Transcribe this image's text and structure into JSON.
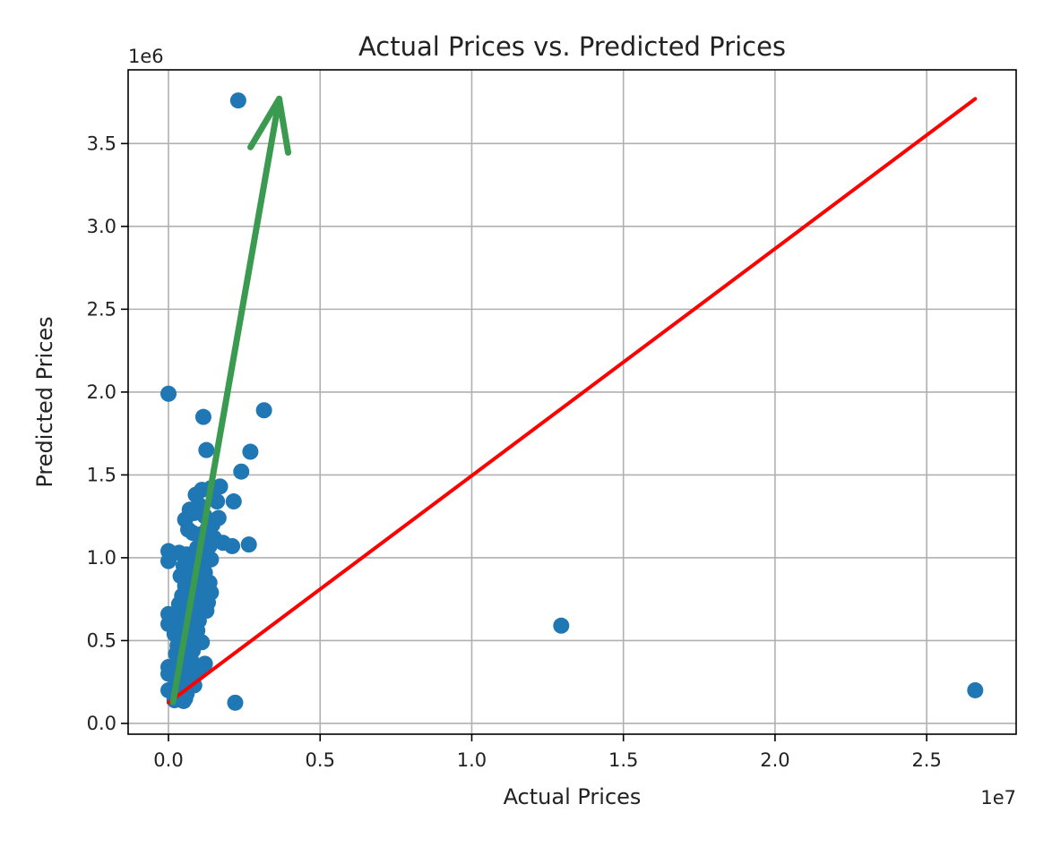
{
  "chart_data": {
    "type": "scatter",
    "title": "Actual Prices vs. Predicted Prices",
    "xlabel": "Actual Prices",
    "ylabel": "Predicted Prices",
    "x_offset_text": "1e7",
    "y_offset_text": "1e6",
    "xlim": [
      -1330000,
      27950000
    ],
    "ylim": [
      -65000,
      3945000
    ],
    "x_ticks": [
      {
        "value": 0,
        "label": "0.0"
      },
      {
        "value": 5000000,
        "label": "0.5"
      },
      {
        "value": 10000000,
        "label": "1.0"
      },
      {
        "value": 15000000,
        "label": "1.5"
      },
      {
        "value": 20000000,
        "label": "2.0"
      },
      {
        "value": 25000000,
        "label": "2.5"
      }
    ],
    "y_ticks": [
      {
        "value": 0,
        "label": "0.0"
      },
      {
        "value": 500000,
        "label": "0.5"
      },
      {
        "value": 1000000,
        "label": "1.0"
      },
      {
        "value": 1500000,
        "label": "1.5"
      },
      {
        "value": 2000000,
        "label": "2.0"
      },
      {
        "value": 2500000,
        "label": "2.5"
      },
      {
        "value": 3000000,
        "label": "3.0"
      },
      {
        "value": 3500000,
        "label": "3.5"
      }
    ],
    "grid": true,
    "colors": {
      "points": "#1f77b4",
      "line": "#ff0000",
      "annotation": "#3a9a50"
    },
    "points": [
      [
        2300000,
        3760000
      ],
      [
        0,
        1990000
      ],
      [
        1150000,
        1850000
      ],
      [
        3150000,
        1890000
      ],
      [
        1250000,
        1650000
      ],
      [
        2700000,
        1640000
      ],
      [
        2400000,
        1520000
      ],
      [
        1700000,
        1430000
      ],
      [
        1400000,
        1420000
      ],
      [
        1100000,
        1410000
      ],
      [
        900000,
        1380000
      ],
      [
        2150000,
        1340000
      ],
      [
        1600000,
        1340000
      ],
      [
        1000000,
        1320000
      ],
      [
        700000,
        1290000
      ],
      [
        850000,
        1270000
      ],
      [
        1200000,
        1250000
      ],
      [
        550000,
        1230000
      ],
      [
        1650000,
        1240000
      ],
      [
        1450000,
        1200000
      ],
      [
        1300000,
        1180000
      ],
      [
        650000,
        1170000
      ],
      [
        800000,
        1150000
      ],
      [
        1050000,
        1140000
      ],
      [
        1500000,
        1120000
      ],
      [
        1150000,
        1100000
      ],
      [
        1800000,
        1090000
      ],
      [
        2100000,
        1070000
      ],
      [
        2650000,
        1080000
      ],
      [
        1350000,
        1070000
      ],
      [
        950000,
        1060000
      ],
      [
        0,
        1040000
      ],
      [
        350000,
        1030000
      ],
      [
        600000,
        1020000
      ],
      [
        750000,
        1010000
      ],
      [
        900000,
        1000000
      ],
      [
        1100000,
        990000
      ],
      [
        1250000,
        980000
      ],
      [
        1400000,
        990000
      ],
      [
        0,
        980000
      ],
      [
        500000,
        950000
      ],
      [
        650000,
        940000
      ],
      [
        850000,
        930000
      ],
      [
        1050000,
        920000
      ],
      [
        1200000,
        910000
      ],
      [
        400000,
        890000
      ],
      [
        700000,
        880000
      ],
      [
        950000,
        870000
      ],
      [
        1150000,
        860000
      ],
      [
        1350000,
        850000
      ],
      [
        550000,
        830000
      ],
      [
        800000,
        820000
      ],
      [
        1000000,
        810000
      ],
      [
        1250000,
        800000
      ],
      [
        1400000,
        790000
      ],
      [
        450000,
        770000
      ],
      [
        700000,
        760000
      ],
      [
        900000,
        750000
      ],
      [
        1100000,
        740000
      ],
      [
        1300000,
        730000
      ],
      [
        350000,
        720000
      ],
      [
        600000,
        710000
      ],
      [
        850000,
        700000
      ],
      [
        1050000,
        690000
      ],
      [
        1250000,
        680000
      ],
      [
        0,
        660000
      ],
      [
        300000,
        650000
      ],
      [
        550000,
        640000
      ],
      [
        800000,
        630000
      ],
      [
        1000000,
        620000
      ],
      [
        0,
        600000
      ],
      [
        250000,
        590000
      ],
      [
        450000,
        580000
      ],
      [
        700000,
        570000
      ],
      [
        950000,
        560000
      ],
      [
        200000,
        540000
      ],
      [
        400000,
        520000
      ],
      [
        650000,
        510000
      ],
      [
        900000,
        500000
      ],
      [
        1100000,
        490000
      ],
      [
        300000,
        470000
      ],
      [
        550000,
        450000
      ],
      [
        800000,
        440000
      ],
      [
        250000,
        420000
      ],
      [
        500000,
        400000
      ],
      [
        750000,
        380000
      ],
      [
        1200000,
        360000
      ],
      [
        0,
        340000
      ],
      [
        300000,
        340000
      ],
      [
        600000,
        330000
      ],
      [
        1000000,
        310000
      ],
      [
        0,
        300000
      ],
      [
        450000,
        280000
      ],
      [
        800000,
        270000
      ],
      [
        250000,
        250000
      ],
      [
        550000,
        240000
      ],
      [
        850000,
        230000
      ],
      [
        0,
        200000
      ],
      [
        300000,
        190000
      ],
      [
        600000,
        180000
      ],
      [
        350000,
        160000
      ],
      [
        550000,
        150000
      ],
      [
        200000,
        140000
      ],
      [
        500000,
        135000
      ],
      [
        2200000,
        125000
      ],
      [
        12950000,
        590000
      ],
      [
        26600000,
        200000
      ]
    ]
  },
  "reference_line": {
    "x": [
      0,
      26600000
    ],
    "y": [
      125000,
      3770000
    ]
  },
  "annotation_arrow": {
    "from": [
      150000,
      130000
    ],
    "to": [
      3650000,
      3770000
    ]
  }
}
